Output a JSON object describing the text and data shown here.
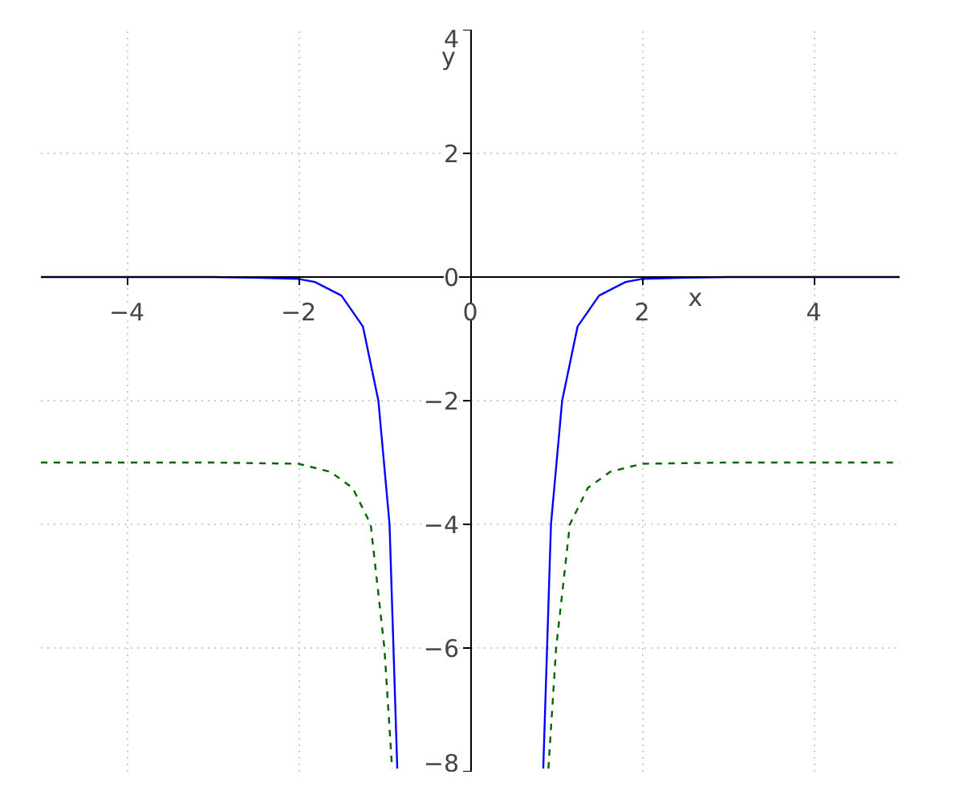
{
  "chart_data": {
    "type": "line",
    "xlabel": "x",
    "ylabel": "y",
    "xlim": [
      -5,
      5
    ],
    "ylim": [
      -8,
      4
    ],
    "xticks": [
      -4,
      -2,
      0,
      2,
      4
    ],
    "yticks": [
      -8,
      -6,
      -4,
      -2,
      0,
      2,
      4
    ],
    "grid": true,
    "series": [
      {
        "color": "#0000ff",
        "line_style": "solid",
        "x": [
          -5,
          -4,
          -3,
          -2.5,
          -2.0,
          -1.81,
          -1.5,
          -1.25,
          -1.07,
          -0.94,
          -0.85,
          null,
          0.85,
          0.94,
          1.07,
          1.25,
          1.5,
          1.81,
          2.0,
          2.5,
          3,
          4,
          5
        ],
        "values": [
          0,
          0,
          0,
          -0.01,
          -0.03,
          -0.08,
          -0.3,
          -0.8,
          -2,
          -4,
          -7.95,
          null,
          -7.95,
          -4,
          -2,
          -0.8,
          -0.3,
          -0.08,
          -0.03,
          -0.01,
          0,
          0,
          0
        ]
      },
      {
        "color": "#006400",
        "line_style": "dashed",
        "x": [
          -5,
          -4,
          -3,
          -2.5,
          -2.0,
          -1.63,
          -1.37,
          -1.16,
          -1.0,
          -0.91,
          null,
          0.91,
          1.0,
          1.16,
          1.37,
          1.63,
          2.0,
          2.5,
          3,
          4,
          5
        ],
        "values": [
          -3,
          -3,
          -3,
          -3.01,
          -3.02,
          -3.15,
          -3.41,
          -4,
          -6,
          -7.95,
          null,
          -7.95,
          -6,
          -4,
          -3.41,
          -3.15,
          -3.02,
          -3.01,
          -3,
          -3,
          -3
        ]
      }
    ]
  }
}
